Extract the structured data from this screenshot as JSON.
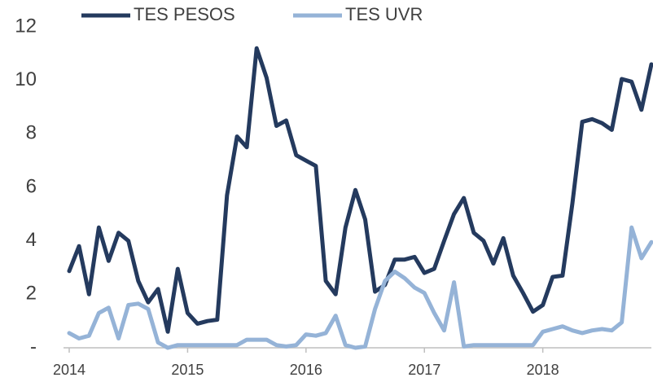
{
  "chart_data": {
    "type": "line",
    "x": [
      2014,
      2014.083,
      2014.167,
      2014.25,
      2014.333,
      2014.417,
      2014.5,
      2014.583,
      2014.667,
      2014.75,
      2014.833,
      2014.917,
      2015,
      2015.083,
      2015.167,
      2015.25,
      2015.333,
      2015.417,
      2015.5,
      2015.583,
      2015.667,
      2015.75,
      2015.833,
      2015.917,
      2016,
      2016.083,
      2016.167,
      2016.25,
      2016.333,
      2016.417,
      2016.5,
      2016.583,
      2016.667,
      2016.75,
      2016.833,
      2016.917,
      2017,
      2017.083,
      2017.167,
      2017.25,
      2017.333,
      2017.417,
      2017.5,
      2017.583,
      2017.667,
      2017.75,
      2017.833,
      2017.917,
      2018,
      2018.083,
      2018.167,
      2018.25,
      2018.333,
      2018.417,
      2018.5,
      2018.583,
      2018.667,
      2018.75,
      2018.833,
      2018.917
    ],
    "series": [
      {
        "name": "TES PESOS",
        "color": "#243a5e",
        "values": [
          2.87,
          3.8,
          2.0,
          4.5,
          3.25,
          4.3,
          4.0,
          2.5,
          1.7,
          2.2,
          0.6,
          2.95,
          1.3,
          0.9,
          1.0,
          1.05,
          5.7,
          7.9,
          7.5,
          11.2,
          10.1,
          8.3,
          8.5,
          7.2,
          7.0,
          6.8,
          2.5,
          2.0,
          4.5,
          5.9,
          4.8,
          2.1,
          2.35,
          3.3,
          3.3,
          3.4,
          2.8,
          2.95,
          4.0,
          5.0,
          5.6,
          4.3,
          4.0,
          3.15,
          4.1,
          2.7,
          2.05,
          1.35,
          1.6,
          2.65,
          2.7,
          5.4,
          8.45,
          8.55,
          8.4,
          8.15,
          10.05,
          9.95,
          8.9,
          10.6
        ]
      },
      {
        "name": "TES UVR",
        "color": "#95b3d7",
        "values": [
          0.55,
          0.35,
          0.45,
          1.3,
          1.5,
          0.35,
          1.6,
          1.65,
          1.45,
          0.2,
          0,
          0.1,
          0.1,
          0.1,
          0.1,
          0.1,
          0.1,
          0.1,
          0.3,
          0.3,
          0.3,
          0.1,
          0.05,
          0.1,
          0.5,
          0.45,
          0.55,
          1.2,
          0.1,
          0,
          0.05,
          1.45,
          2.5,
          2.85,
          2.6,
          2.25,
          2.05,
          1.3,
          0.65,
          2.45,
          0.05,
          0.1,
          0.1,
          0.1,
          0.1,
          0.1,
          0.1,
          0.1,
          0.6,
          0.7,
          0.8,
          0.65,
          0.55,
          0.65,
          0.7,
          0.65,
          0.95,
          4.5,
          3.35,
          3.95
        ]
      }
    ],
    "xlim": [
      2014,
      2018.917
    ],
    "xticks": [
      2014,
      2015,
      2016,
      2017,
      2018
    ],
    "ylim": [
      0,
      12
    ],
    "yticks": [
      {
        "value": 0,
        "label": "-"
      },
      2,
      4,
      6,
      8,
      10,
      12
    ],
    "grid": false,
    "legend": "top"
  }
}
